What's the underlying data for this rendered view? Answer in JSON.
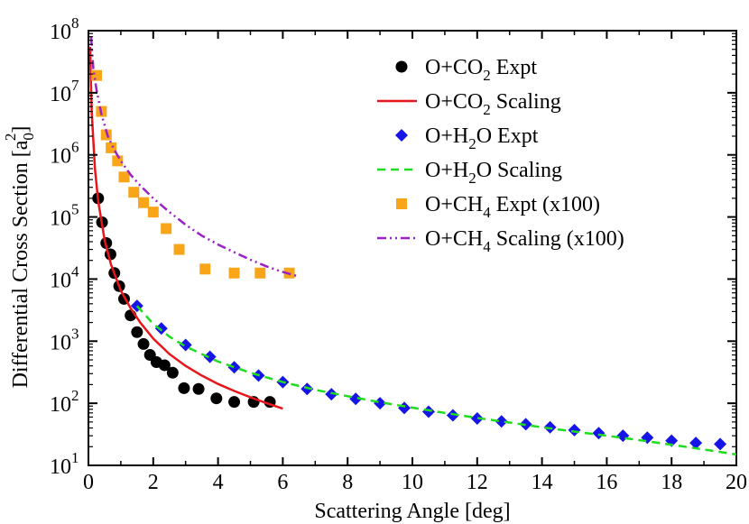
{
  "chart_data": {
    "type": "scatter",
    "title": "",
    "xlabel": "Scattering Angle [deg]",
    "ylabel": "Differential Cross Section [a0^2]",
    "ylabel_parts": {
      "main": "Differential Cross Section [a",
      "sub": "0",
      "sup": "2",
      "close": "]"
    },
    "xlim": [
      0,
      20
    ],
    "ylim_log10": [
      1,
      8
    ],
    "y_scale": "log",
    "grid": false,
    "legend_position": "top-right",
    "x_ticks": [
      "0",
      "2",
      "4",
      "6",
      "8",
      "10",
      "12",
      "14",
      "16",
      "18",
      "20"
    ],
    "y_ticks": [
      {
        "base": "10",
        "exp": "1"
      },
      {
        "base": "10",
        "exp": "2"
      },
      {
        "base": "10",
        "exp": "3"
      },
      {
        "base": "10",
        "exp": "4"
      },
      {
        "base": "10",
        "exp": "5"
      },
      {
        "base": "10",
        "exp": "6"
      },
      {
        "base": "10",
        "exp": "7"
      },
      {
        "base": "10",
        "exp": "8"
      }
    ],
    "series": [
      {
        "name": "O+CO2 Expt",
        "legend": {
          "pre": "O+CO",
          "sub": "2",
          "post": " Expt"
        },
        "kind": "points",
        "marker": "circle",
        "color": "#000000",
        "x": [
          0.3,
          0.42,
          0.55,
          0.68,
          0.8,
          0.95,
          1.1,
          1.3,
          1.5,
          1.7,
          1.9,
          2.1,
          2.35,
          2.6,
          2.95,
          3.4,
          3.95,
          4.5,
          5.1,
          5.6
        ],
        "y": [
          200000,
          82000,
          38000,
          25000,
          12500,
          7700,
          4800,
          2600,
          1400,
          900,
          600,
          460,
          410,
          310,
          175,
          170,
          120,
          105,
          105,
          105
        ]
      },
      {
        "name": "O+CO2 Scaling",
        "legend": {
          "pre": "O+CO",
          "sub": "2",
          "post": " Scaling"
        },
        "kind": "line",
        "dash": "solid",
        "color": "#e8161b",
        "x": [
          0.05,
          0.1,
          0.2,
          0.3,
          0.5,
          0.7,
          1.0,
          1.3,
          1.6,
          2.0,
          2.5,
          3.0,
          3.5,
          4.0,
          4.5,
          5.0,
          5.5,
          6.0
        ],
        "y": [
          55000000,
          5000000,
          600000,
          180000,
          42000,
          17000,
          6500,
          3400,
          2000,
          1100,
          620,
          400,
          280,
          205,
          158,
          125,
          100,
          82
        ]
      },
      {
        "name": "O+H2O Expt",
        "legend": {
          "pre": "O+H",
          "sub": "2",
          "post": "O Expt"
        },
        "kind": "points",
        "marker": "diamond",
        "color": "#1515e6",
        "x": [
          1.5,
          2.25,
          3.0,
          3.75,
          4.5,
          5.25,
          6.0,
          6.75,
          7.5,
          8.25,
          9.0,
          9.75,
          10.5,
          11.25,
          12.0,
          12.75,
          13.5,
          14.25,
          15.0,
          15.75,
          16.5,
          17.25,
          18.0,
          18.75,
          19.5
        ],
        "y": [
          3700,
          1600,
          870,
          560,
          380,
          280,
          220,
          170,
          140,
          118,
          100,
          84,
          73,
          64,
          57,
          51,
          46,
          41,
          37,
          33,
          30,
          28,
          25,
          23,
          22
        ]
      },
      {
        "name": "O+H2O Scaling",
        "legend": {
          "pre": "O+H",
          "sub": "2",
          "post": "O Scaling"
        },
        "kind": "line",
        "dash": "dashed",
        "color": "#1fdc1f",
        "x": [
          1.5,
          2.0,
          2.5,
          3.0,
          4.0,
          5.0,
          6.0,
          7.0,
          8.0,
          9.0,
          10.0,
          11.0,
          12.0,
          13.0,
          14.0,
          15.0,
          16.0,
          17.0,
          18.0,
          19.0,
          20.0
        ],
        "y": [
          3700,
          1900,
          1180,
          820,
          470,
          310,
          220,
          165,
          130,
          104,
          85,
          70,
          58,
          49,
          41,
          35,
          30,
          25.5,
          21.5,
          18,
          15
        ]
      },
      {
        "name": "O+CH4 Expt (x100)",
        "legend": {
          "pre": "O+CH",
          "sub": "4",
          "post": " Expt (x100)"
        },
        "kind": "points",
        "marker": "square",
        "color": "#f9a51a",
        "x": [
          0.25,
          0.4,
          0.55,
          0.7,
          0.9,
          1.1,
          1.4,
          1.7,
          2.0,
          2.4,
          2.8,
          3.6,
          4.5,
          5.3,
          6.2
        ],
        "y": [
          19000000,
          5000000,
          2100000,
          1300000,
          800000,
          440000,
          250000,
          170000,
          120000,
          65000,
          30000,
          14500,
          12500,
          12500,
          12500
        ]
      },
      {
        "name": "O+CH4 Scaling (x100)",
        "legend": {
          "pre": "O+CH",
          "sub": "4",
          "post": " Scaling (x100)"
        },
        "kind": "line",
        "dash": "dashdotdot",
        "color": "#9a20c8",
        "x": [
          0.08,
          0.15,
          0.25,
          0.4,
          0.6,
          0.8,
          1.0,
          1.3,
          1.6,
          2.0,
          2.5,
          3.0,
          3.5,
          4.0,
          4.5,
          5.0,
          5.5,
          6.0,
          6.5
        ],
        "y": [
          80000000,
          25000000,
          11000000,
          4500000,
          2000000,
          1200000,
          800000,
          480000,
          320000,
          200000,
          120000,
          75000,
          50000,
          36000,
          27000,
          20500,
          16000,
          13000,
          11000
        ]
      }
    ]
  }
}
